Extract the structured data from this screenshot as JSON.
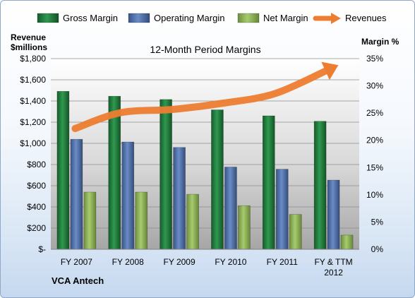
{
  "chart_data": {
    "type": "bar",
    "title": "12-Month Period Margins",
    "company": "VCA Antech",
    "categories": [
      [
        "FY 2007"
      ],
      [
        "FY 2008"
      ],
      [
        "FY 2009"
      ],
      [
        "FY 2010"
      ],
      [
        "FY 2011"
      ],
      [
        "FY & TTM",
        "2012"
      ]
    ],
    "left_axis": {
      "label_line1": "Revenue",
      "label_line2": "$millions",
      "min": 0,
      "max": 1800,
      "step": 200,
      "ticks": [
        "$-",
        "$200",
        "$400",
        "$600",
        "$800",
        "$1,000",
        "$1,200",
        "$1,400",
        "$1,600",
        "$1,800"
      ]
    },
    "right_axis": {
      "label": "Margin %",
      "min": 0,
      "max": 35,
      "step": 5,
      "ticks": [
        "0%",
        "5%",
        "10%",
        "15%",
        "20%",
        "25%",
        "30%",
        "35%"
      ]
    },
    "series": [
      {
        "name": "Gross Margin",
        "axis": "right",
        "color": "#1f7a3a",
        "values": [
          29.0,
          28.1,
          27.5,
          25.6,
          24.5,
          23.5
        ]
      },
      {
        "name": "Operating Margin",
        "axis": "right",
        "color": "#4f6fa8",
        "values": [
          20.2,
          19.7,
          18.7,
          15.1,
          14.7,
          12.7
        ]
      },
      {
        "name": "Net Margin",
        "axis": "right",
        "color": "#8fb356",
        "values": [
          10.5,
          10.5,
          10.1,
          8.0,
          6.4,
          2.6
        ]
      },
      {
        "name": "Revenues",
        "axis": "left",
        "color": "#ed7d31",
        "values": [
          1140,
          1290,
          1320,
          1380,
          1470,
          1700
        ]
      }
    ],
    "grid": true,
    "legend_position": "top"
  }
}
